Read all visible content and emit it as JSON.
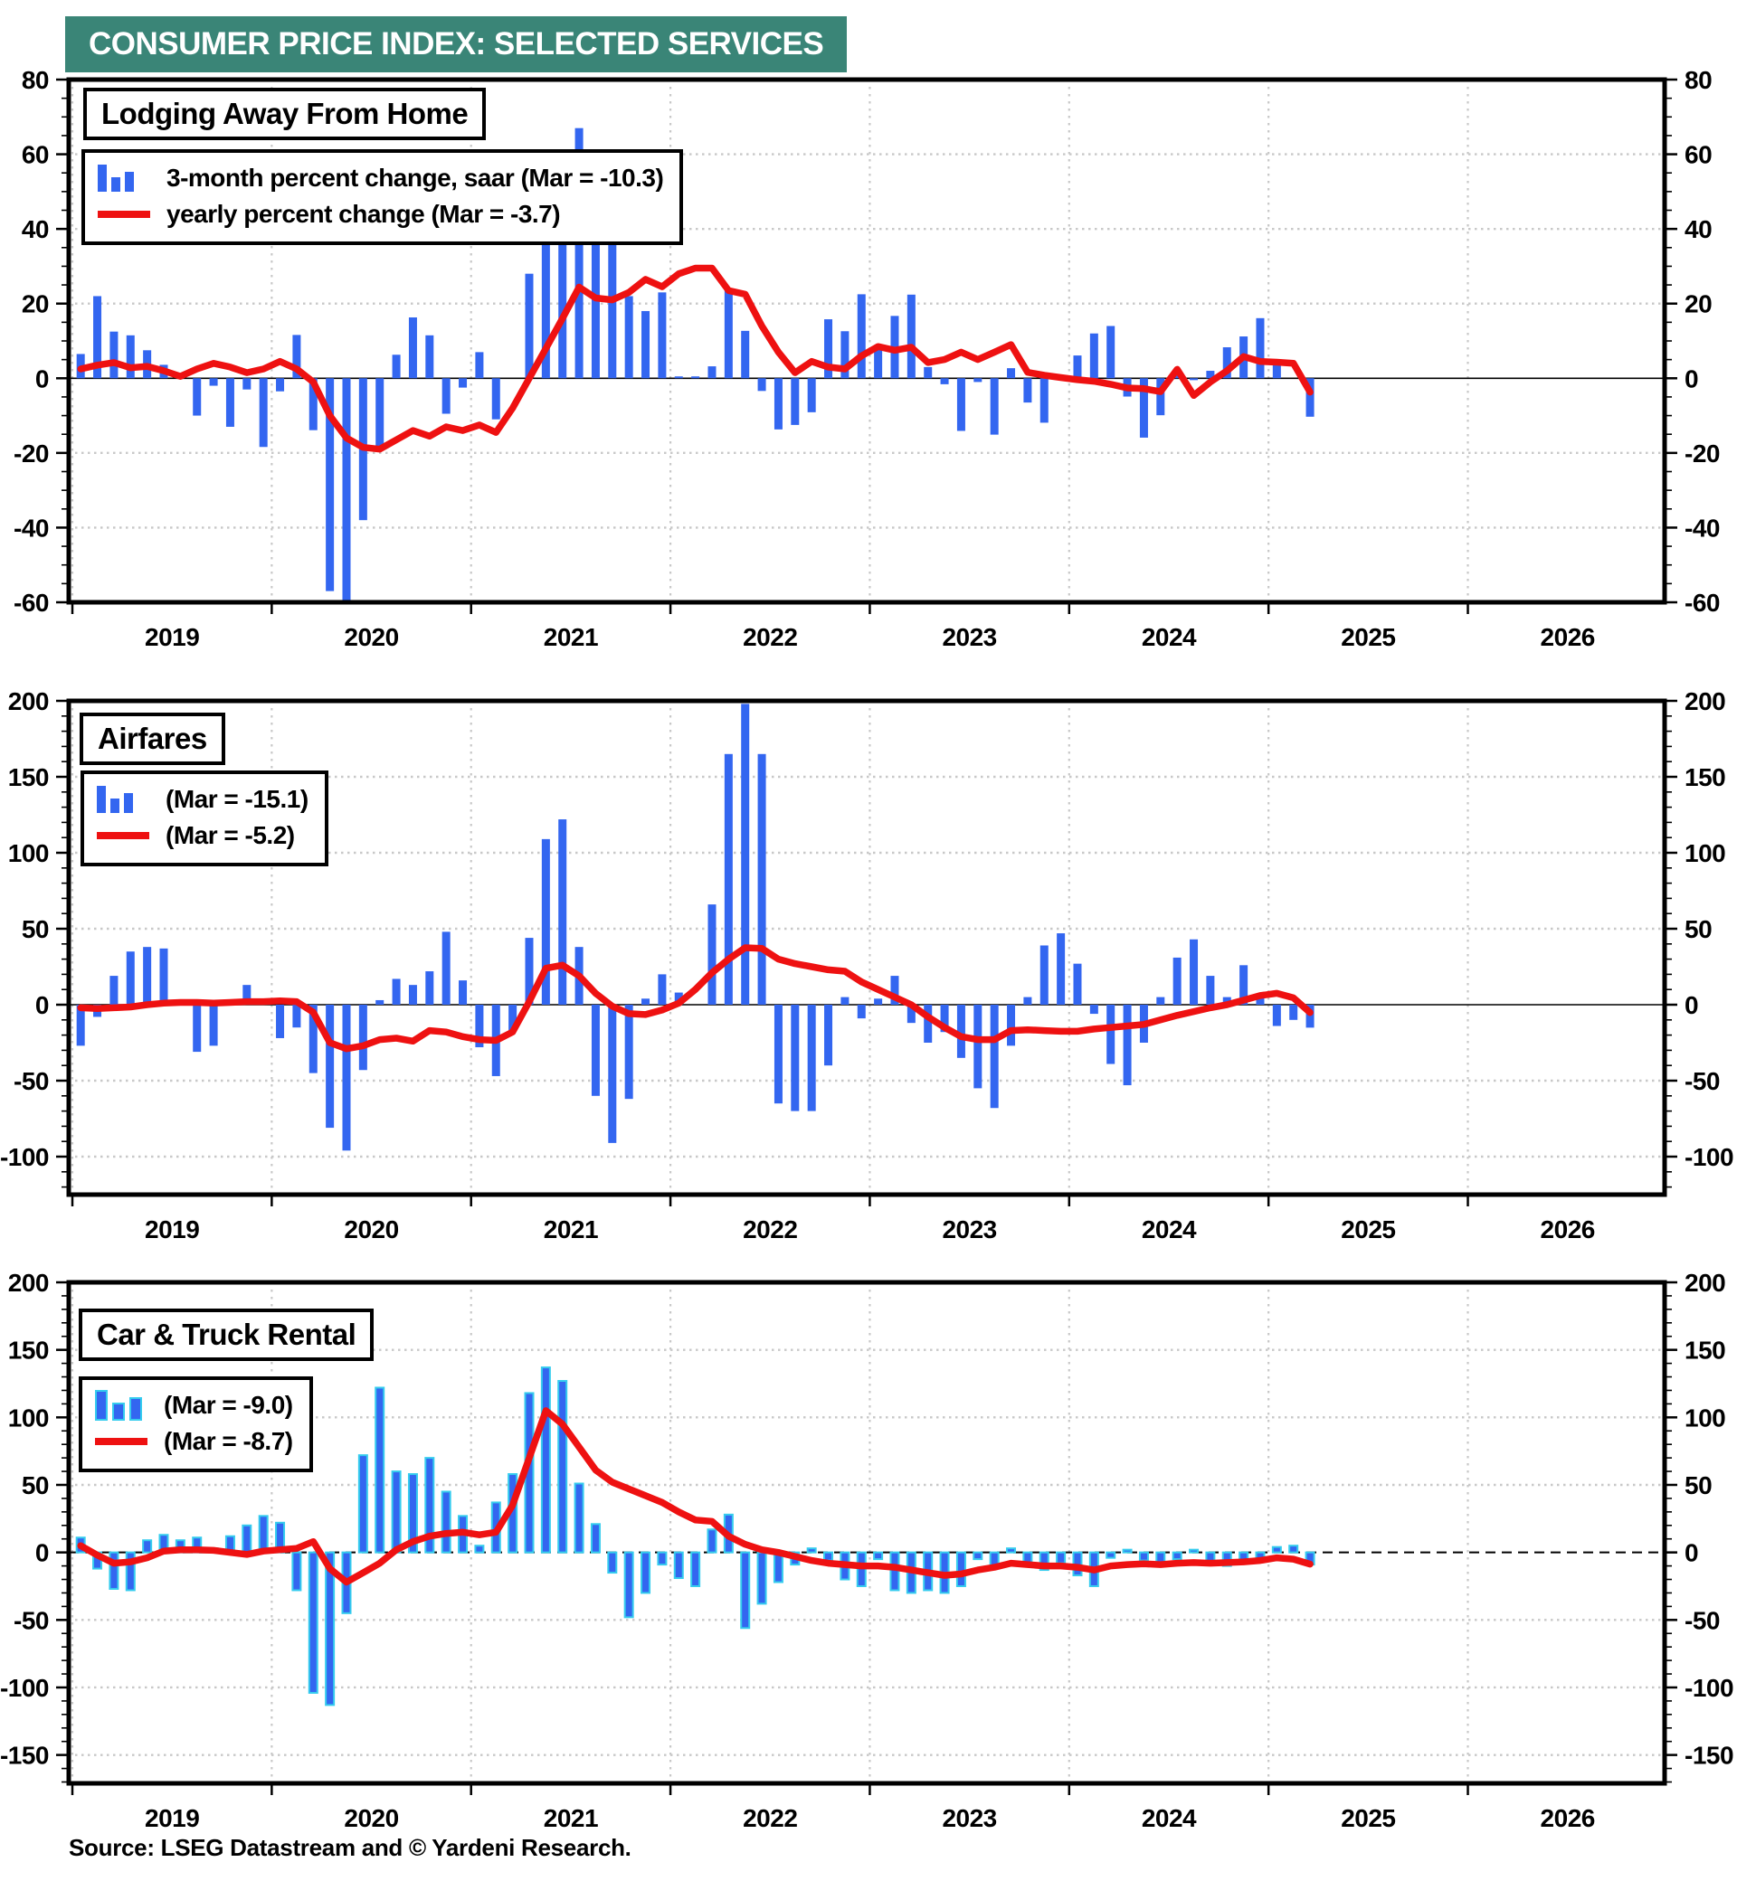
{
  "header": {
    "title": "CONSUMER PRICE INDEX: SELECTED SERVICES",
    "bg": "#3A8577",
    "fg": "#FFFFFF"
  },
  "source": "Source: LSEG Datastream and © Yardeni Research.",
  "colors": {
    "bar": "#3366F0",
    "bar_outline_panel3": "#35CCEE",
    "line": "#EE1111",
    "grid": "#C8C8C8",
    "axis": "#000000",
    "background": "#FFFFFF"
  },
  "x_axis": {
    "years": [
      2019,
      2020,
      2021,
      2022,
      2023,
      2024,
      2025,
      2026
    ],
    "months_start": "2019-01",
    "months_end": "2025-03"
  },
  "chart_data": [
    {
      "type": "bar",
      "title": "Lodging Away From Home",
      "legend": {
        "bar": "3-month percent change, saar (Mar = -10.3)",
        "line": "yearly percent change  (Mar = -3.7)"
      },
      "mar_bar": -10.3,
      "mar_line": -3.7,
      "ylim": [
        -60,
        80
      ],
      "yticks": [
        -60,
        -40,
        -20,
        0,
        20,
        40,
        60,
        80
      ],
      "minor_step": 5,
      "bar_values": [
        6.5,
        22,
        12.5,
        11.5,
        7.5,
        3.6,
        1,
        -10,
        -2,
        -13,
        -3,
        -18.4,
        -3.5,
        11.6,
        -13.9,
        -57,
        -62,
        -38,
        -19,
        6.3,
        16.3,
        11.5,
        -9.5,
        -2.5,
        7,
        -11,
        0,
        28,
        36,
        41,
        67,
        41,
        40,
        22,
        18,
        23,
        0.5,
        0.5,
        3.2,
        23.7,
        12.7,
        -3.4,
        -13.7,
        -12.5,
        -9.1,
        15.8,
        12.6,
        22.5,
        7.7,
        16.7,
        22.4,
        3,
        -1.6,
        -14.1,
        -1,
        -15.1,
        2.7,
        -6.5,
        -11.9,
        0,
        6.1,
        12,
        14,
        -4.9,
        -15.9,
        -9.9,
        1,
        -0.5,
        2,
        8.3,
        11.2,
        16.1,
        4.5,
        0,
        -10.3
      ],
      "line_values": [
        2.5,
        3.5,
        4.2,
        2.8,
        3.2,
        2,
        0.5,
        2.5,
        4,
        3,
        1.5,
        2.5,
        4.5,
        2.5,
        -1,
        -10,
        -16,
        -18.5,
        -19,
        -16.5,
        -14,
        -15.5,
        -13,
        -14,
        -12.5,
        -14.5,
        -8,
        0,
        8,
        16,
        24.4,
        21.5,
        21,
        23,
        26.5,
        24.5,
        28,
        29.5,
        29.5,
        23.5,
        22.5,
        14,
        7,
        1.5,
        4.5,
        3,
        2.5,
        6,
        8.5,
        7.5,
        8.3,
        4.2,
        5,
        7,
        5,
        7,
        9,
        1.6,
        0.8,
        0.2,
        -0.4,
        -0.8,
        -1.6,
        -2.6,
        -2.8,
        -3.6,
        2.4,
        -4.6,
        -1,
        2,
        5.8,
        4.5,
        4.3,
        4,
        -3.7
      ]
    },
    {
      "type": "bar",
      "title": "Airfares",
      "legend": {
        "bar": "(Mar = -15.1)",
        "line": "(Mar = -5.2)"
      },
      "mar_bar": -15.1,
      "mar_line": -5.2,
      "ylim": [
        -125,
        200
      ],
      "yticks": [
        -100,
        -50,
        0,
        50,
        100,
        150,
        200
      ],
      "minor_step": 10,
      "bar_values": [
        -27,
        -8,
        19,
        35,
        38,
        37,
        0,
        -31,
        -27,
        0,
        13,
        0,
        -22,
        -15,
        -45,
        -81,
        -96,
        -43,
        3,
        17,
        13,
        22,
        48,
        16,
        -28,
        -47,
        -17,
        44,
        109,
        122,
        38,
        -60,
        -91,
        -62,
        4,
        20,
        8,
        0,
        66,
        165,
        198,
        165,
        -65,
        -70,
        -70,
        -40,
        5,
        -9,
        4,
        19,
        -12,
        -25,
        -18,
        -35,
        -55,
        -68,
        -27,
        5,
        39,
        47,
        27,
        -6,
        -39,
        -53,
        -25,
        5,
        31,
        43,
        19,
        5,
        26,
        5,
        -14,
        -10,
        -15.1
      ],
      "line_values": [
        -2,
        -2.5,
        -2,
        -1.5,
        0,
        1,
        1.5,
        1.5,
        1,
        1.5,
        2,
        2,
        2.5,
        2,
        -5,
        -25,
        -29,
        -27,
        -23,
        -22,
        -24,
        -17,
        -18,
        -21,
        -23,
        -23.5,
        -18,
        2,
        24,
        26,
        19,
        7.5,
        -1,
        -5.9,
        -6.5,
        -3.5,
        1,
        10,
        21,
        30,
        37.5,
        37,
        30,
        27,
        25,
        23,
        22,
        15,
        10,
        5,
        0,
        -8,
        -15,
        -21,
        -23,
        -23,
        -17,
        -16.5,
        -17,
        -17.5,
        -17.5,
        -16,
        -15,
        -14,
        -13,
        -10,
        -7,
        -4.5,
        -2,
        0,
        3,
        6,
        7.5,
        4.5,
        -5.2
      ]
    },
    {
      "type": "bar",
      "title": "Car & Truck Rental",
      "legend": {
        "bar": "(Mar = -9.0)",
        "line": "(Mar = -8.7)"
      },
      "mar_bar": -9.0,
      "mar_line": -8.7,
      "ylim": [
        -171,
        200
      ],
      "yticks": [
        -150,
        -100,
        -50,
        0,
        50,
        100,
        150,
        200
      ],
      "minor_step": 10,
      "bar_values": [
        11,
        -12,
        -27,
        -28,
        9,
        13,
        9,
        11,
        3,
        12,
        20,
        27,
        22,
        -28,
        -104,
        -113,
        -45,
        72,
        122,
        60,
        58,
        70,
        45,
        27,
        5,
        37,
        58,
        118,
        137,
        127,
        51,
        21,
        -15,
        -48,
        -30,
        -9,
        -19,
        -25,
        17,
        28,
        -56,
        -38,
        -22,
        -9,
        3,
        -6,
        -20,
        -25,
        -5,
        -28,
        -30,
        -28,
        -30,
        -25,
        -5,
        -12,
        3,
        -8,
        -13,
        -8,
        -17,
        -25,
        -4,
        2,
        -6,
        -10,
        -5,
        2,
        -8,
        -10,
        -8,
        -6,
        4,
        5,
        -9
      ],
      "line_values": [
        5,
        -2,
        -8,
        -7,
        -4,
        1,
        2,
        2,
        1.5,
        0,
        -1.5,
        1,
        2,
        3,
        8,
        -12,
        -22,
        -15,
        -8,
        2,
        8,
        12,
        14,
        15,
        13,
        15,
        35,
        70,
        105,
        95,
        78,
        61,
        52,
        47,
        42,
        37,
        30,
        24,
        23,
        12,
        6,
        2,
        0,
        -3,
        -6,
        -8,
        -9,
        -10,
        -10,
        -11,
        -13,
        -15,
        -17,
        -16,
        -13,
        -11,
        -8,
        -9,
        -10,
        -10,
        -11,
        -13,
        -10,
        -9,
        -8.5,
        -9,
        -8,
        -7.5,
        -8,
        -7.5,
        -7,
        -6,
        -4,
        -5,
        -8.7
      ]
    }
  ]
}
